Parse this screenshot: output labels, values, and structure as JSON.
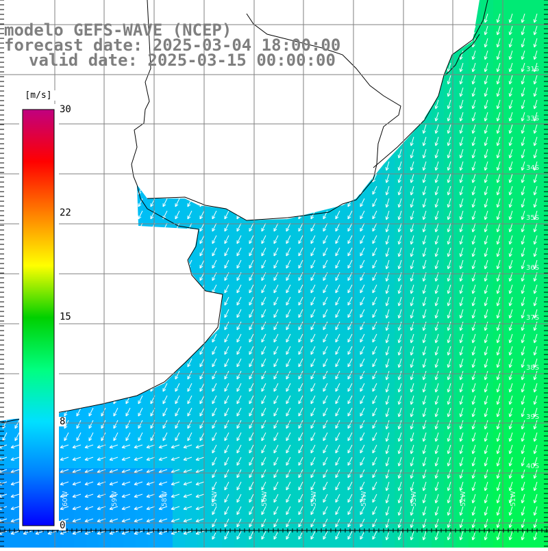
{
  "title": {
    "line1": "modelo GEFS-WAVE (NCEP)",
    "line2": "forecast date: 2025-03-04 18:00:00",
    "line3": "valid date: 2025-03-15 00:00:00"
  },
  "colorbar": {
    "unit": "[m/s]",
    "ticks": [
      "30",
      "22",
      "15",
      "8",
      "0"
    ],
    "colors": [
      "#0000ff",
      "#0080ff",
      "#00e0ff",
      "#00ff80",
      "#00d000",
      "#ffff00",
      "#ff8000",
      "#ff0000",
      "#c00080"
    ]
  },
  "map": {
    "lat_labels": [
      "31S",
      "33S",
      "34S",
      "35S",
      "36S",
      "37S",
      "38S",
      "39S",
      "40S"
    ],
    "lon_labels": [
      "60W",
      "59W",
      "58W",
      "57W",
      "56W",
      "55W",
      "54W",
      "53W",
      "52W",
      "51W"
    ],
    "land_color": "#ffffff",
    "grid_color": "#7f7f7f",
    "arrow_color": "#ffffff",
    "coastline_color": "#000000",
    "arrow_direction": "from north-east"
  }
}
